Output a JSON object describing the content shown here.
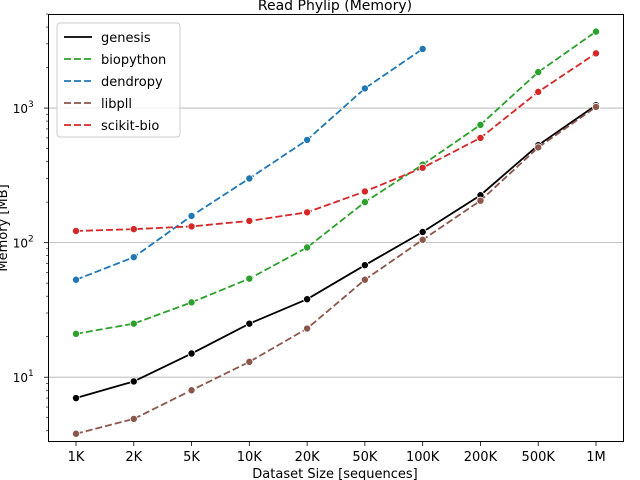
{
  "chart_data": {
    "type": "line",
    "title": "Read Phylip  (Memory)",
    "xlabel": "Dataset Size  [sequences]",
    "ylabel": "Memory  [MB]",
    "categories": [
      "1K",
      "2K",
      "5K",
      "10K",
      "20K",
      "50K",
      "100K",
      "200K",
      "500K",
      "1M"
    ],
    "yscale": "log",
    "ylim": [
      3.3,
      5000
    ],
    "yticks": [
      {
        "value": 10,
        "label": "10",
        "exp": "1"
      },
      {
        "value": 100,
        "label": "10",
        "exp": "2"
      },
      {
        "value": 1000,
        "label": "10",
        "exp": "3"
      }
    ],
    "grid": "horizontal-major",
    "legend_position": "top-left",
    "series": [
      {
        "name": "genesis",
        "color": "#000000",
        "dash": "solid",
        "values": [
          7,
          9.3,
          15,
          25,
          38,
          68,
          120,
          225,
          530,
          1050
        ]
      },
      {
        "name": "biopython",
        "color": "#2ca02c",
        "dash": "dashed",
        "values": [
          21,
          25,
          36,
          54,
          92,
          200,
          380,
          750,
          1850,
          3700
        ]
      },
      {
        "name": "dendropy",
        "color": "#1f77b4",
        "dash": "dashed",
        "values": [
          53,
          78,
          158,
          300,
          580,
          1400,
          2750,
          null,
          null,
          null
        ]
      },
      {
        "name": "libpll",
        "color": "#8c564b",
        "dash": "dashed",
        "values": [
          3.8,
          4.9,
          8,
          13,
          23,
          53,
          105,
          205,
          510,
          1020
        ]
      },
      {
        "name": "scikit-bio",
        "color": "#d62728",
        "dash": "dashed",
        "values": [
          122,
          126,
          132,
          145,
          168,
          240,
          360,
          600,
          1320,
          2550
        ]
      }
    ]
  }
}
